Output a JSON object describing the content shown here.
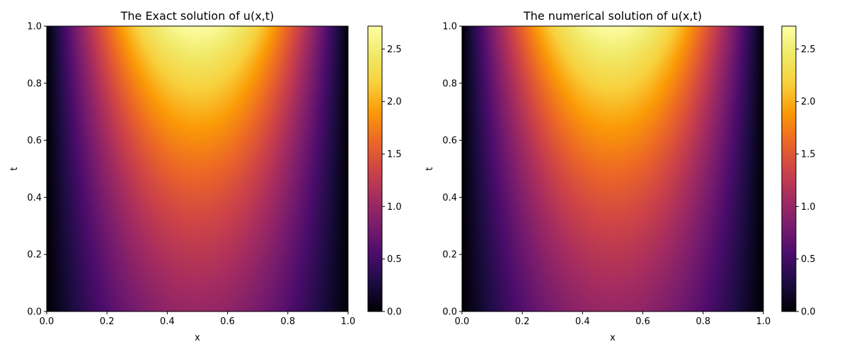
{
  "chart_data": [
    {
      "type": "heatmap",
      "title": "The Exact solution of u(x,t)",
      "xlabel": "x",
      "ylabel": "t",
      "xlim": [
        0,
        1
      ],
      "ylim": [
        0,
        1
      ],
      "xticks": [
        "0.0",
        "0.2",
        "0.4",
        "0.6",
        "0.8",
        "1.0"
      ],
      "yticks": [
        "0.0",
        "0.2",
        "0.4",
        "0.6",
        "0.8",
        "1.0"
      ],
      "colormap": "inferno",
      "function": "u(x,t) = e^t sin(pi x)",
      "value_range": [
        0,
        2.718
      ],
      "colorbar": {
        "ticks": [
          "0.0",
          "0.5",
          "1.0",
          "1.5",
          "2.0",
          "2.5"
        ],
        "ticks_values": [
          0,
          0.5,
          1.0,
          1.5,
          2.0,
          2.5
        ]
      }
    },
    {
      "type": "heatmap",
      "title": "The numerical solution of u(x,t)",
      "xlabel": "x",
      "ylabel": "t",
      "xlim": [
        0,
        1
      ],
      "ylim": [
        0,
        1
      ],
      "xticks": [
        "0.0",
        "0.2",
        "0.4",
        "0.6",
        "0.8",
        "1.0"
      ],
      "yticks": [
        "0.0",
        "0.2",
        "0.4",
        "0.6",
        "0.8",
        "1.0"
      ],
      "colormap": "inferno",
      "function": "u(x,t) = e^t sin(pi x)",
      "value_range": [
        0,
        2.718
      ],
      "colorbar": {
        "ticks": [
          "0.0",
          "0.5",
          "1.0",
          "1.5",
          "2.0",
          "2.5"
        ],
        "ticks_values": [
          0,
          0.5,
          1.0,
          1.5,
          2.0,
          2.5
        ]
      }
    }
  ]
}
